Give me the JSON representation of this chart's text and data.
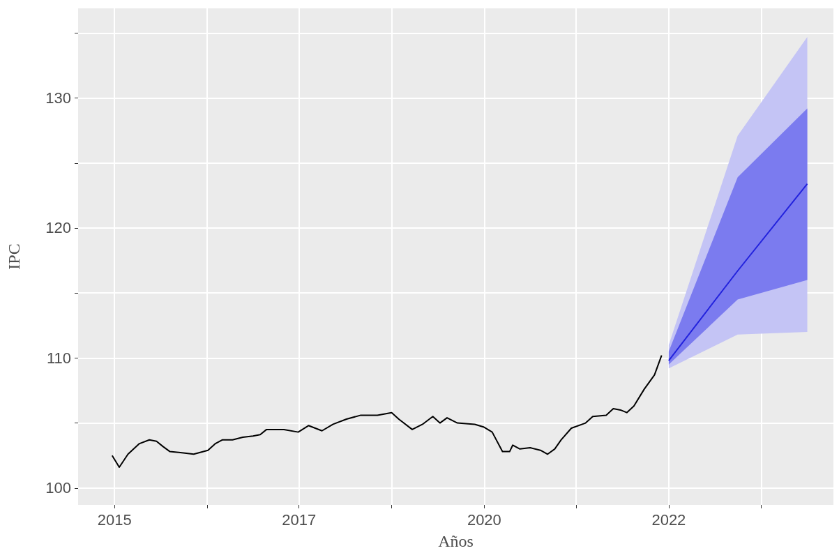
{
  "chart_data": {
    "type": "line",
    "xlabel": "Años",
    "ylabel": "IPC",
    "xlim": [
      2014.54,
      2024.08
    ],
    "ylim": [
      98.7,
      136.9
    ],
    "xticks": [
      {
        "value": 2015,
        "label": "2015"
      },
      {
        "value": 2016.17,
        "label": null
      },
      {
        "value": 2017.33,
        "label": "2017"
      },
      {
        "value": 2018.5,
        "label": null
      },
      {
        "value": 2019.67,
        "label": "2020"
      },
      {
        "value": 2020.83,
        "label": null
      },
      {
        "value": 2022,
        "label": "2022"
      },
      {
        "value": 2023.17,
        "label": null
      }
    ],
    "yticks": [
      100,
      {
        "value": 105,
        "label": null
      },
      110,
      {
        "value": 115,
        "label": null
      },
      120,
      {
        "value": 125,
        "label": null
      },
      130,
      {
        "value": 135,
        "label": null
      }
    ],
    "grid": true,
    "marker": "none",
    "line_style": "solid",
    "series": [
      {
        "color": "#000000",
        "x": [
          2014.97,
          2015.06,
          2015.17,
          2015.31,
          2015.44,
          2015.53,
          2015.61,
          2015.7,
          2015.87,
          2016.0,
          2016.18,
          2016.27,
          2016.36,
          2016.49,
          2016.62,
          2016.75,
          2016.84,
          2016.92,
          2017.14,
          2017.32,
          2017.45,
          2017.62,
          2017.76,
          2017.93,
          2018.11,
          2018.32,
          2018.5,
          2018.59,
          2018.76,
          2018.89,
          2019.02,
          2019.11,
          2019.2,
          2019.33,
          2019.55,
          2019.66,
          2019.77,
          2019.9,
          2019.99,
          2020.03,
          2020.12,
          2020.25,
          2020.38,
          2020.47,
          2020.56,
          2020.64,
          2020.77,
          2020.95,
          2021.04,
          2021.21,
          2021.3,
          2021.39,
          2021.47,
          2021.56,
          2021.69,
          2021.82,
          2021.91
        ],
        "values": [
          102.5,
          101.6,
          102.6,
          103.4,
          103.7,
          103.6,
          103.2,
          102.8,
          102.7,
          102.6,
          102.9,
          103.4,
          103.7,
          103.7,
          103.9,
          104.0,
          104.1,
          104.5,
          104.5,
          104.3,
          104.8,
          104.4,
          104.9,
          105.3,
          105.6,
          105.6,
          105.8,
          105.3,
          104.5,
          104.9,
          105.5,
          105.0,
          105.4,
          105.0,
          104.9,
          104.7,
          104.3,
          102.8,
          102.8,
          103.3,
          103.0,
          103.1,
          102.9,
          102.6,
          103.0,
          103.7,
          104.6,
          105.0,
          105.5,
          105.6,
          106.1,
          106.0,
          105.8,
          106.3,
          107.6,
          108.7,
          110.2
        ]
      },
      {
        "type": "area",
        "color": "#c4c4f5",
        "x": [
          2022,
          2022.87,
          2023.75
        ],
        "values": [
          null,
          null,
          null
        ],
        "lower": [
          109.2,
          111.8,
          112.0
        ],
        "upper": [
          111.0,
          127.1,
          134.7
        ]
      },
      {
        "type": "area",
        "color": "#7b7bef",
        "x": [
          2022,
          2022.87,
          2023.75
        ],
        "values": [
          null,
          null,
          null
        ],
        "lower": [
          109.5,
          114.5,
          116.0
        ],
        "upper": [
          110.5,
          123.9,
          129.2
        ]
      },
      {
        "color": "#2222dd",
        "x": [
          2022,
          2022.87,
          2023.75
        ],
        "values": [
          109.8,
          116.7,
          123.4
        ]
      }
    ]
  }
}
